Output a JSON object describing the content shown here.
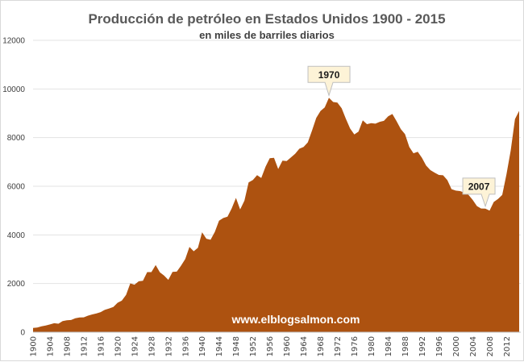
{
  "chart_data": {
    "type": "area",
    "title": "Producción de petróleo en Estados Unidos 1900 - 2015",
    "subtitle": "en miles de barriles diarios",
    "xlabel": "",
    "ylabel": "",
    "ylim": [
      0,
      12000
    ],
    "yticks": [
      0,
      2000,
      4000,
      6000,
      8000,
      10000,
      12000
    ],
    "xlim": [
      1900,
      2015
    ],
    "xticks": [
      1900,
      1904,
      1908,
      1912,
      1916,
      1920,
      1924,
      1928,
      1932,
      1936,
      1940,
      1944,
      1948,
      1952,
      1956,
      1960,
      1964,
      1968,
      1972,
      1976,
      1980,
      1984,
      1988,
      1992,
      1996,
      2000,
      2004,
      2008,
      2012
    ],
    "grid": true,
    "color": "#ad5210",
    "start_year": 1900,
    "values": [
      174,
      190,
      243,
      274,
      319,
      369,
      347,
      456,
      490,
      502,
      574,
      603,
      609,
      680,
      729,
      770,
      826,
      921,
      975,
      1037,
      1210,
      1295,
      1530,
      2007,
      1951,
      2092,
      2111,
      2469,
      2468,
      2760,
      2460,
      2332,
      2150,
      2479,
      2488,
      2730,
      3007,
      3505,
      3327,
      3466,
      4107,
      3842,
      3799,
      4125,
      4584,
      4695,
      4750,
      5088,
      5520,
      5046,
      5407,
      6158,
      6256,
      6458,
      6342,
      6807,
      7151,
      7170,
      6710,
      7054,
      7035,
      7183,
      7332,
      7542,
      7614,
      7804,
      8295,
      8810,
      9096,
      9238,
      9637,
      9463,
      9441,
      9208,
      8774,
      8375,
      8132,
      8245,
      8707,
      8552,
      8597,
      8572,
      8649,
      8688,
      8879,
      8971,
      8680,
      8349,
      8140,
      7613,
      7355,
      7417,
      7171,
      6847,
      6662,
      6560,
      6465,
      6452,
      6252,
      5881,
      5822,
      5801,
      5744,
      5649,
      5441,
      5184,
      5086,
      5077,
      5000,
      5353,
      5478,
      5646,
      6497,
      7467,
      8757,
      9100
    ],
    "annotations": [
      {
        "label": "1970",
        "year": 1970
      },
      {
        "label": "2007",
        "year": 2007
      }
    ],
    "watermark": "www.elblogsalmon.com"
  }
}
